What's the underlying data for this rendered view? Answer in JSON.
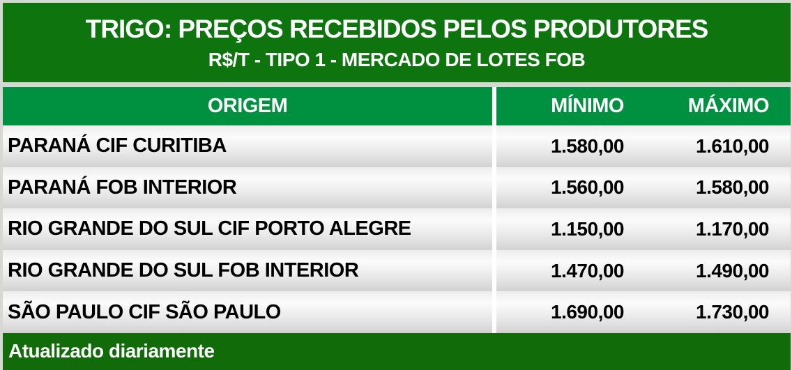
{
  "page": {
    "title": "TRIGO: PREÇOS RECEBIDOS PELOS PRODUTORES",
    "subtitle": "R$/T - TIPO 1 - MERCADO DE LOTES FOB",
    "footer_note": "Atualizado diariamente"
  },
  "table": {
    "columns": [
      "ORIGEM",
      "MÍNIMO",
      "MÁXIMO"
    ],
    "rows": [
      {
        "origem": "PARANÁ CIF CURITIBA",
        "minimo": "1.580,00",
        "maximo": "1.610,00"
      },
      {
        "origem": "PARANÁ FOB INTERIOR",
        "minimo": "1.560,00",
        "maximo": "1.580,00"
      },
      {
        "origem": "RIO GRANDE DO SUL CIF PORTO ALEGRE",
        "minimo": "1.150,00",
        "maximo": "1.170,00"
      },
      {
        "origem": "RIO GRANDE DO SUL FOB INTERIOR",
        "minimo": "1.470,00",
        "maximo": "1.490,00"
      },
      {
        "origem": "SÃO PAULO CIF SÃO PAULO",
        "minimo": "1.690,00",
        "maximo": "1.730,00"
      }
    ]
  },
  "colors": {
    "banner_green": "#0e750e",
    "table_header_green": "#009140",
    "footer_green": "#106b08",
    "frame_gray": "#d5d8d3",
    "text_on_green": "#ffffff",
    "row_text": "#000000"
  },
  "chart_data": {
    "type": "table",
    "title": "TRIGO: PREÇOS RECEBIDOS PELOS PRODUTORES",
    "subtitle": "R$/T - TIPO 1 - MERCADO DE LOTES FOB",
    "columns": [
      "ORIGEM",
      "MÍNIMO",
      "MÁXIMO"
    ],
    "rows": [
      [
        "PARANÁ CIF CURITIBA",
        "1.580,00",
        "1.610,00"
      ],
      [
        "PARANÁ FOB INTERIOR",
        "1.560,00",
        "1.580,00"
      ],
      [
        "RIO GRANDE DO SUL CIF PORTO ALEGRE",
        "1.150,00",
        "1.170,00"
      ],
      [
        "RIO GRANDE DO SUL FOB INTERIOR",
        "1.470,00",
        "1.490,00"
      ],
      [
        "SÃO PAULO CIF SÃO PAULO",
        "1.690,00",
        "1.730,00"
      ]
    ],
    "values_numeric": [
      {
        "origem": "PARANÁ CIF CURITIBA",
        "minimo": 1580.0,
        "maximo": 1610.0
      },
      {
        "origem": "PARANÁ FOB INTERIOR",
        "minimo": 1560.0,
        "maximo": 1580.0
      },
      {
        "origem": "RIO GRANDE DO SUL CIF PORTO ALEGRE",
        "minimo": 1150.0,
        "maximo": 1170.0
      },
      {
        "origem": "RIO GRANDE DO SUL FOB INTERIOR",
        "minimo": 1470.0,
        "maximo": 1490.0
      },
      {
        "origem": "SÃO PAULO CIF SÃO PAULO",
        "minimo": 1690.0,
        "maximo": 1730.0
      }
    ],
    "unit": "R$/t",
    "note": "Atualizado diariamente"
  }
}
